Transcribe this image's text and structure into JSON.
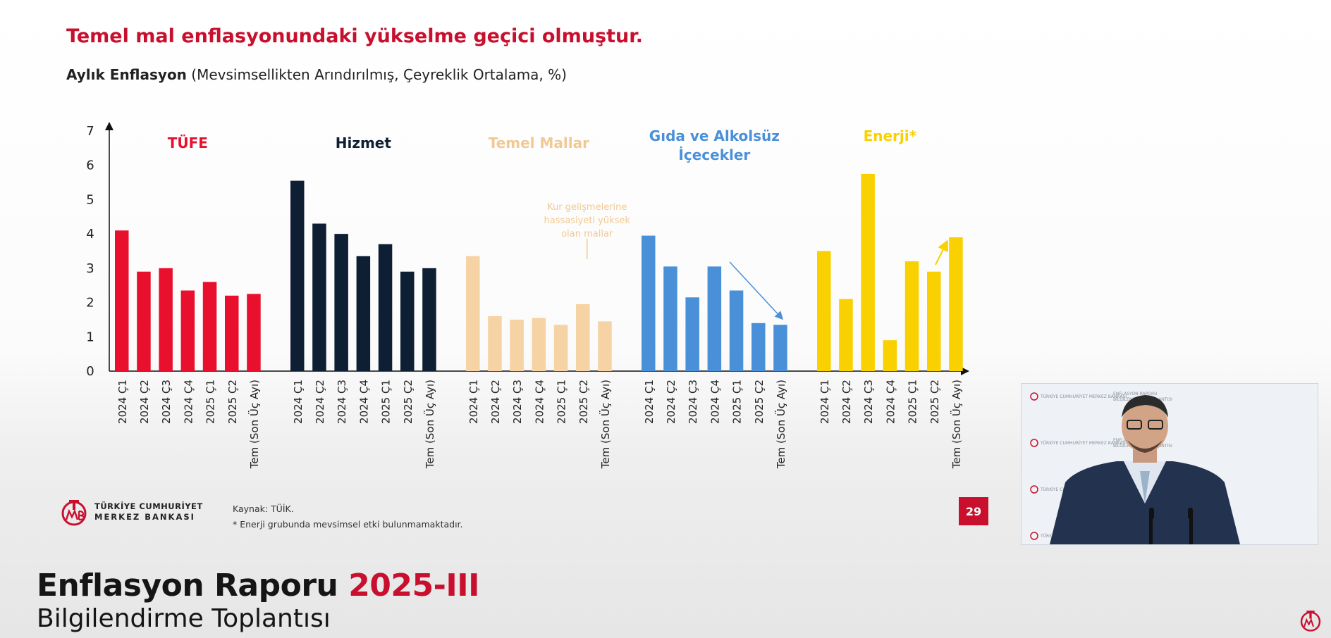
{
  "slide": {
    "title": "Temel mal enflasyonundaki yükselme geçici olmuştur.",
    "subtitle_bold": "Aylık Enflasyon",
    "subtitle_rest": " (Mevsimsellikten Arındırılmış, Çeyreklik Ortalama, %)"
  },
  "footer": {
    "logo_line1": "TÜRKİYE CUMHURİYET",
    "logo_line2": "MERKEZ BANKASI",
    "source_line1": "Kaynak: TÜİK.",
    "source_line2": "* Enerji grubunda mevsimsel etki bulunmamaktadır.",
    "page_number": "29"
  },
  "banner": {
    "title_main": "Enflasyon Raporu ",
    "title_accent": "2025-III",
    "subtitle": "Bilgilendirme Toplantısı"
  },
  "video": {
    "backdrop_bank": "TÜRKİYE CUMHURİYET MERKEZ BANKASI",
    "backdrop_event_1": "ENFLASYON RAPORU",
    "backdrop_event_2": "BİLGİLENDİRME TOPLANTISI"
  },
  "chart_data": {
    "type": "bar",
    "ylim": [
      0,
      7
    ],
    "yticks": [
      0,
      1,
      2,
      3,
      4,
      5,
      6,
      7
    ],
    "grid": false,
    "categories": [
      "2024 Ç1",
      "2024 Ç2",
      "2024 Ç3",
      "2024 Ç4",
      "2025 Ç1",
      "2025 Ç2",
      "Tem (Son Üç Ayı)"
    ],
    "groups": [
      {
        "name": "TÜFE",
        "color": "#e8102c",
        "values": [
          4.1,
          2.9,
          3.0,
          2.35,
          2.6,
          2.2,
          2.25
        ]
      },
      {
        "name": "Hizmet",
        "color": "#0e1e33",
        "values": [
          5.55,
          4.3,
          4.0,
          3.35,
          3.7,
          2.9,
          3.0
        ]
      },
      {
        "name": "Temel Mallar",
        "color": "#f5d3a4",
        "values": [
          3.35,
          1.6,
          1.5,
          1.55,
          1.35,
          1.95,
          1.45
        ],
        "annotation": "Kur gelişmelerine hassasiyeti yüksek olan mallar"
      },
      {
        "name": "Gıda ve Alkolsüz İçecekler",
        "color": "#4a90d9",
        "values": [
          3.95,
          3.05,
          2.15,
          3.05,
          2.35,
          1.4,
          1.35
        ]
      },
      {
        "name": "Enerji*",
        "color": "#f9d000",
        "values": [
          3.5,
          2.1,
          5.75,
          0.9,
          3.2,
          2.9,
          3.9
        ]
      }
    ]
  }
}
